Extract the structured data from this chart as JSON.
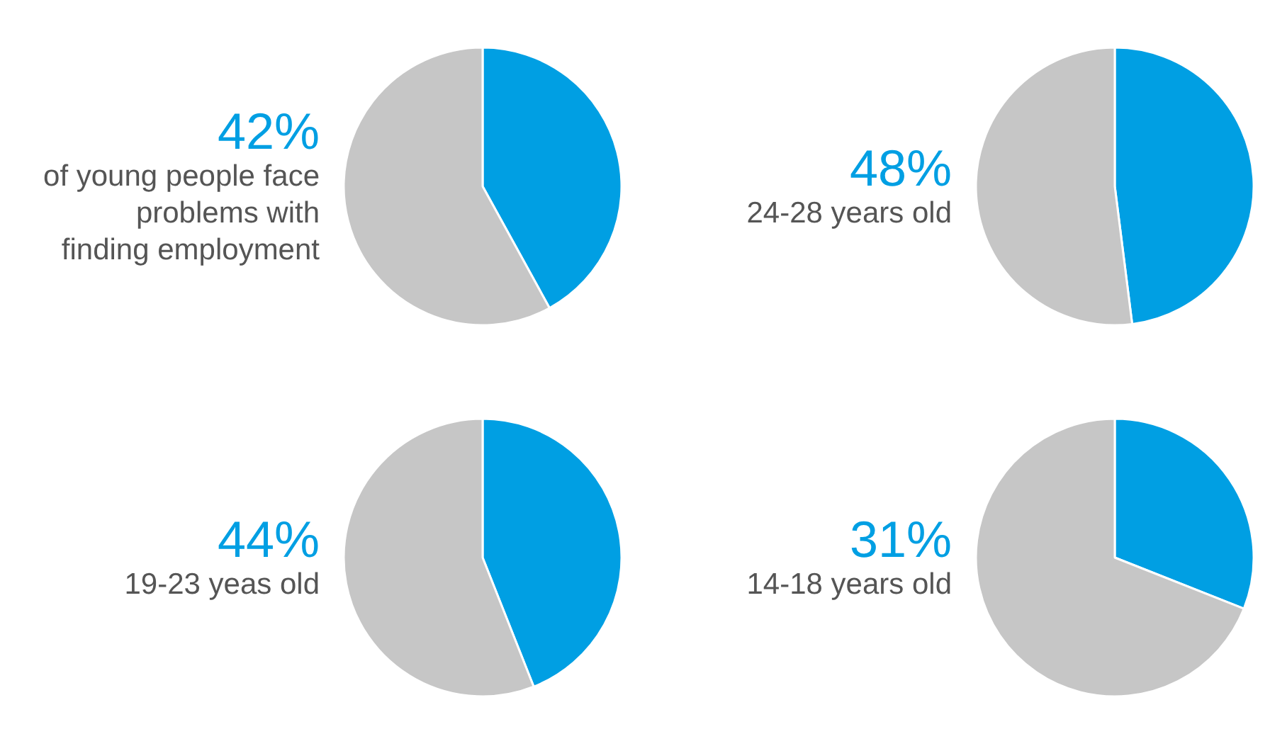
{
  "chart_data": [
    {
      "type": "pie",
      "categories": [
        null,
        null
      ],
      "values": [
        42,
        58
      ],
      "colors": [
        "#009fe3",
        "#c6c6c6"
      ],
      "title": "42%",
      "subtitle": "of young people face\nproblems with\nfinding employment"
    },
    {
      "type": "pie",
      "categories": [
        null,
        null
      ],
      "values": [
        48,
        52
      ],
      "colors": [
        "#009fe3",
        "#c6c6c6"
      ],
      "title": "48%",
      "subtitle": "24-28 years old"
    },
    {
      "type": "pie",
      "categories": [
        null,
        null
      ],
      "values": [
        44,
        56
      ],
      "colors": [
        "#009fe3",
        "#c6c6c6"
      ],
      "title": "44%",
      "subtitle": "19-23 yeas old"
    },
    {
      "type": "pie",
      "categories": [
        null,
        null
      ],
      "values": [
        31,
        69
      ],
      "colors": [
        "#009fe3",
        "#c6c6c6"
      ],
      "title": "31%",
      "subtitle": "14-18 years old"
    }
  ]
}
